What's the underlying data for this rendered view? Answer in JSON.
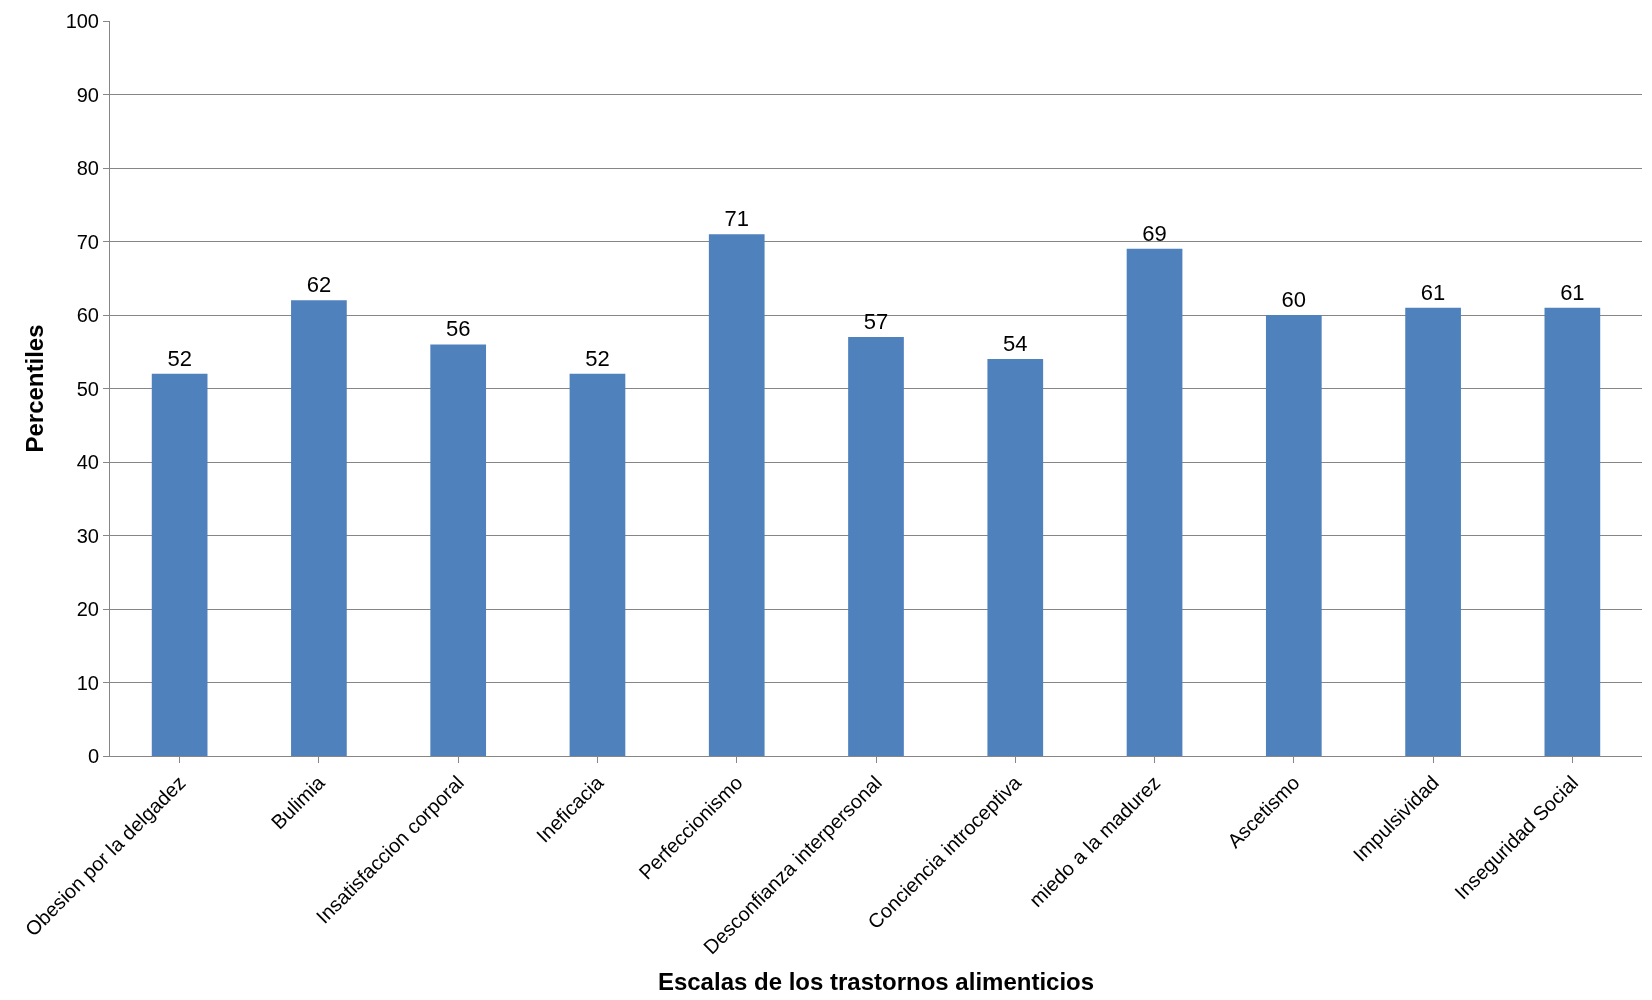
{
  "chart_data": {
    "type": "bar",
    "xlabel": "Escalas de los trastornos alimenticios",
    "ylabel": "Percentiles",
    "categories": [
      "Obesion por la delgadez",
      "Bulimia",
      "Insatisfaccion corporal",
      "Ineficacia",
      "Perfeccionismo",
      "Desconfianza interpersonal",
      "Conciencia introceptiva",
      "miedo a la madurez",
      "Ascetismo",
      "Impulsividad",
      "Inseguridad Social"
    ],
    "values": [
      52,
      62,
      56,
      52,
      71,
      57,
      54,
      69,
      60,
      61,
      61
    ],
    "color": "#4f81bd",
    "data_labels": true,
    "ylim": [
      0,
      100
    ],
    "yticks": [
      0,
      10,
      20,
      30,
      40,
      50,
      60,
      70,
      80,
      90,
      100
    ],
    "grid": "y"
  }
}
